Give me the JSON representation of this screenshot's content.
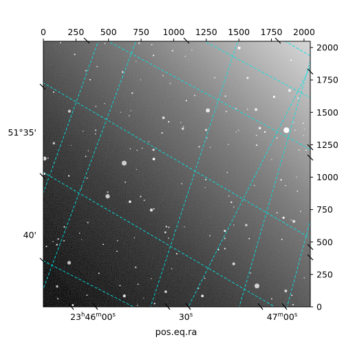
{
  "chart_data": {
    "type": "image",
    "xlabel": "pos.eq.ra",
    "pixel_x_axis": {
      "range": [
        0,
        2048
      ],
      "ticks": [
        0,
        250,
        500,
        750,
        1000,
        1250,
        1500,
        1750,
        2000
      ]
    },
    "pixel_y_axis": {
      "range": [
        0,
        2048
      ],
      "ticks": [
        0,
        250,
        500,
        750,
        1000,
        1250,
        1500,
        1750,
        2000
      ]
    },
    "ra_ticks": [
      "23h46m00s",
      "30s",
      "47m00s"
    ],
    "dec_ticks": [
      "51°35'",
      "40'"
    ],
    "grid_color": "#00e5e5",
    "colormap": "grayscale",
    "background_gradient": "bright upper-right to dark lower-left"
  }
}
